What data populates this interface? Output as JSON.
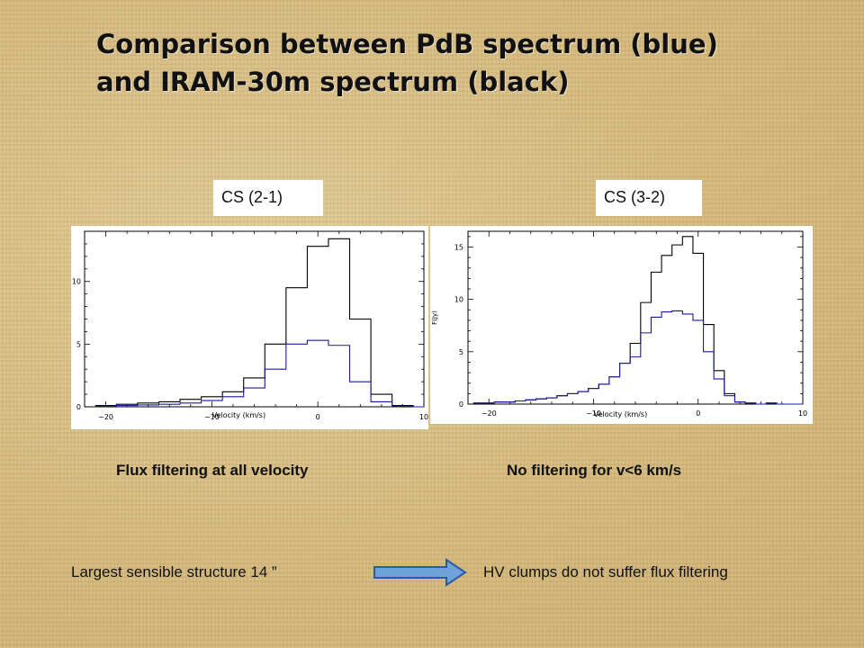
{
  "title_line1": "Comparison between PdB spectrum (blue)",
  "title_line2": "and IRAM-30m spectrum (black)",
  "labels": {
    "left": "CS (2-1)",
    "right": "CS (3-2)"
  },
  "captions": {
    "left": "Flux filtering at all velocity",
    "right": "No filtering for v<6 km/s"
  },
  "bottom": {
    "left": "Largest sensible structure 14 ”",
    "right": "HV clumps do not suffer flux filtering"
  },
  "colors": {
    "blue": "#1a1aa0",
    "black": "#000000",
    "arrow_fill": "#6ea2d8",
    "arrow_stroke": "#2a5aa0"
  },
  "icons": {
    "arrow": "right-arrow-icon"
  },
  "chart_data": [
    {
      "type": "line",
      "step": true,
      "xlabel": "Velocity (km/s)",
      "ylabel": "",
      "xlim": [
        -22,
        10
      ],
      "ylim": [
        0,
        14
      ],
      "xticks": [
        -20,
        -10,
        0,
        10
      ],
      "xtick_labels": [
        "−20",
        "−10",
        "0",
        "10"
      ],
      "yticks": [
        0,
        5,
        10
      ],
      "ytick_labels": [
        "0",
        "5",
        "10"
      ],
      "x": [
        -20,
        -18,
        -16,
        -14,
        -12,
        -10,
        -8,
        -6,
        -4,
        -2,
        0,
        2,
        4,
        6,
        8,
        10
      ],
      "series": [
        {
          "color": "black",
          "values": [
            0.1,
            0.2,
            0.3,
            0.4,
            0.6,
            0.8,
            1.2,
            2.3,
            5.0,
            9.5,
            12.8,
            13.4,
            7.0,
            1.0,
            0.1,
            0.0
          ]
        },
        {
          "color": "blue",
          "values": [
            0.05,
            0.1,
            0.15,
            0.2,
            0.3,
            0.5,
            0.8,
            1.5,
            3.0,
            5.0,
            5.3,
            4.9,
            2.0,
            0.4,
            0.05,
            0.0
          ]
        }
      ]
    },
    {
      "type": "line",
      "step": true,
      "xlabel": "Velocity (km/s)",
      "ylabel": "F(Jy)",
      "xlim": [
        -22,
        10
      ],
      "ylim": [
        0,
        16.5
      ],
      "xticks": [
        -20,
        -10,
        0,
        10
      ],
      "xtick_labels": [
        "−20",
        "−10",
        "0",
        "10"
      ],
      "yticks": [
        0,
        5,
        10,
        15
      ],
      "ytick_labels": [
        "0",
        "5",
        "10",
        "15"
      ],
      "x": [
        -21,
        -20,
        -19,
        -18,
        -17,
        -16,
        -15,
        -14,
        -13,
        -12,
        -11,
        -10,
        -9,
        -8,
        -7,
        -6,
        -5,
        -4,
        -3,
        -2,
        -1,
        0,
        1,
        2,
        3,
        4,
        5,
        6,
        7,
        8,
        9,
        10
      ],
      "series": [
        {
          "color": "black",
          "values": [
            0.1,
            0.1,
            0.2,
            0.2,
            0.3,
            0.4,
            0.5,
            0.6,
            0.8,
            1.0,
            1.2,
            1.5,
            1.9,
            2.6,
            3.9,
            5.8,
            9.7,
            12.6,
            14.2,
            15.2,
            16.0,
            14.4,
            7.6,
            3.2,
            1.0,
            0.2,
            0.1,
            0.0,
            0.1,
            0.0,
            0.0,
            0.0
          ]
        },
        {
          "color": "blue",
          "values": [
            0.1,
            0.1,
            0.2,
            0.2,
            0.3,
            0.4,
            0.5,
            0.6,
            0.8,
            1.0,
            1.2,
            1.5,
            1.9,
            2.6,
            3.9,
            4.5,
            6.8,
            8.3,
            8.8,
            8.9,
            8.6,
            8.0,
            5.0,
            2.4,
            0.8,
            0.2,
            0.1,
            0.0,
            0.1,
            0.0,
            0.0,
            0.0
          ]
        }
      ]
    }
  ]
}
